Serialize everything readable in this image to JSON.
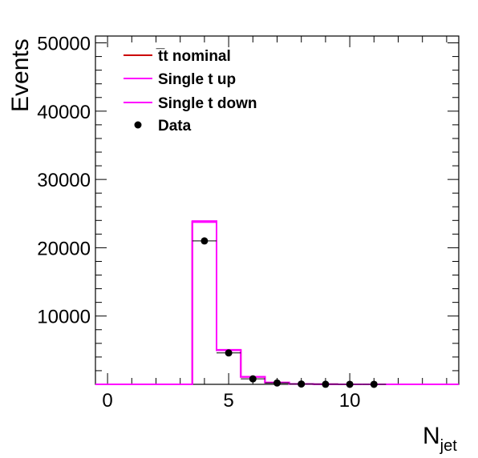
{
  "chart_data": {
    "type": "histogram",
    "x_label_main": "N",
    "x_label_sub": "jet",
    "ylabel": "Events",
    "xlim": [
      -0.5,
      14.5
    ],
    "ylim": [
      0,
      51000
    ],
    "x_ticks": [
      0,
      5,
      10
    ],
    "x_tick_labels": [
      "0",
      "5",
      "10"
    ],
    "y_ticks": [
      10000,
      20000,
      30000,
      40000,
      50000
    ],
    "y_tick_labels": [
      "10000",
      "20000",
      "30000",
      "40000",
      "50000"
    ],
    "bin_edges": [
      -0.5,
      0.5,
      1.5,
      2.5,
      3.5,
      4.5,
      5.5,
      6.5,
      7.5,
      8.5,
      9.5,
      10.5,
      11.5,
      12.5,
      13.5,
      14.5
    ],
    "series": [
      {
        "name": "t̅t nominal",
        "kind": "hist",
        "color": "#cc0000",
        "values": [
          0,
          0,
          0,
          0,
          23800,
          5000,
          1100,
          250,
          60,
          15,
          4,
          1,
          0,
          0,
          0
        ]
      },
      {
        "name": "Single t up",
        "kind": "hist",
        "color": "#ff00ff",
        "values": [
          0,
          0,
          0,
          0,
          23900,
          5050,
          1120,
          260,
          62,
          16,
          4,
          1,
          0,
          0,
          0
        ]
      },
      {
        "name": "Single t down",
        "kind": "hist",
        "color": "#ff00ff",
        "values": [
          0,
          0,
          0,
          0,
          23750,
          4980,
          1090,
          245,
          58,
          14,
          4,
          1,
          0,
          0,
          0
        ]
      },
      {
        "name": "Data",
        "kind": "points",
        "color": "#000000",
        "x": [
          4,
          5,
          6,
          7,
          8,
          9,
          10,
          11
        ],
        "values": [
          21000,
          4600,
          800,
          200,
          50,
          10,
          3,
          1
        ]
      }
    ],
    "legend_labels": [
      "t̅t nominal",
      "Single t up",
      "Single t down",
      "Data"
    ],
    "legend_position": "top-left"
  }
}
